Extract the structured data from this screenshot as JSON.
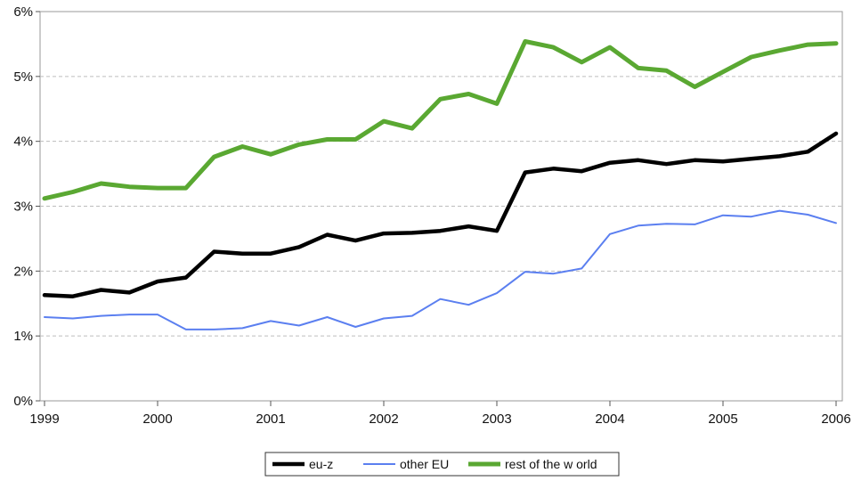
{
  "chart_data": {
    "type": "line",
    "title": "",
    "xlabel": "",
    "ylabel": "",
    "ylim": [
      0,
      6
    ],
    "xlim": [
      1999,
      2006
    ],
    "x_ticks": [
      1999,
      2000,
      2001,
      2002,
      2003,
      2004,
      2005,
      2006
    ],
    "x_tick_labels": [
      "1999",
      "2000",
      "2001",
      "2002",
      "2003",
      "2004",
      "2005",
      "2006"
    ],
    "y_ticks": [
      0,
      1,
      2,
      3,
      4,
      5,
      6
    ],
    "y_tick_labels": [
      "0%",
      "1%",
      "2%",
      "3%",
      "4%",
      "5%",
      "6%"
    ],
    "grid": "horizontal dashed",
    "legend_position": "bottom-center",
    "x": [
      1999.0,
      1999.25,
      1999.5,
      1999.75,
      2000.0,
      2000.25,
      2000.5,
      2000.75,
      2001.0,
      2001.25,
      2001.5,
      2001.75,
      2002.0,
      2002.25,
      2002.5,
      2002.75,
      2003.0,
      2003.25,
      2003.5,
      2003.75,
      2004.0,
      2004.25,
      2004.5,
      2004.75,
      2005.0,
      2005.25,
      2005.5,
      2005.75,
      2006.0
    ],
    "series": [
      {
        "name": "eu-z",
        "color": "#000000",
        "values": [
          1.63,
          1.61,
          1.71,
          1.67,
          1.84,
          1.9,
          2.3,
          2.27,
          2.27,
          2.37,
          2.56,
          2.47,
          2.58,
          2.59,
          2.62,
          2.69,
          2.62,
          3.52,
          3.58,
          3.54,
          3.67,
          3.71,
          3.65,
          3.71,
          3.69,
          3.73,
          3.77,
          3.84,
          4.12
        ]
      },
      {
        "name": "other EU",
        "color": "#5b7ff0",
        "values": [
          1.29,
          1.27,
          1.31,
          1.33,
          1.33,
          1.1,
          1.1,
          1.12,
          1.23,
          1.16,
          1.29,
          1.14,
          1.27,
          1.31,
          1.57,
          1.48,
          1.66,
          1.99,
          1.96,
          2.04,
          2.57,
          2.7,
          2.73,
          2.72,
          2.86,
          2.84,
          2.93,
          2.87,
          2.74
        ]
      },
      {
        "name": "rest of the w orld",
        "color": "#5aa832",
        "values": [
          3.12,
          3.22,
          3.35,
          3.3,
          3.28,
          3.28,
          3.76,
          3.92,
          3.8,
          3.95,
          4.03,
          4.03,
          4.31,
          4.2,
          4.65,
          4.73,
          4.58,
          5.54,
          5.45,
          5.22,
          5.45,
          5.13,
          5.09,
          4.84,
          5.07,
          5.3,
          5.4,
          5.49,
          5.51
        ]
      }
    ]
  }
}
